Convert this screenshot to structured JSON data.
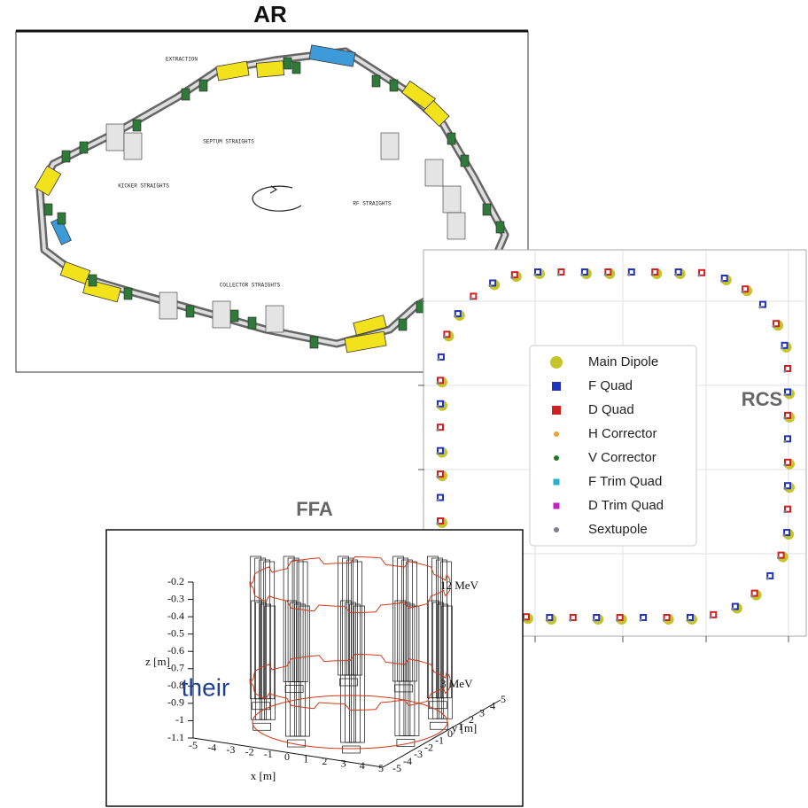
{
  "panels": {
    "ar": {
      "title": "AR",
      "labels": [
        "EXTRACTION",
        "SEPTUM STRAIGHTS",
        "KICKER STRAIGHTS",
        "RF STRAIGHTS",
        "COLLECTOR STRAIGHTS"
      ]
    },
    "rcs": {
      "title": "RCS",
      "legend": [
        {
          "label": "Main Dipole",
          "color": "#c4c42c",
          "marker": "large-circle"
        },
        {
          "label": "F Quad",
          "color": "#2233bb",
          "marker": "square"
        },
        {
          "label": "D Quad",
          "color": "#cc2222",
          "marker": "square"
        },
        {
          "label": "H Corrector",
          "color": "#f0a030",
          "marker": "dot"
        },
        {
          "label": "V Corrector",
          "color": "#227722",
          "marker": "dot"
        },
        {
          "label": "F Trim Quad",
          "color": "#22b4c4",
          "marker": "small-square"
        },
        {
          "label": "D Trim Quad",
          "color": "#c422c4",
          "marker": "small-square"
        },
        {
          "label": "Sextupole",
          "color": "#7f7f8f",
          "marker": "dot"
        }
      ]
    },
    "ffa": {
      "title": "FFA",
      "z_label": "z [m]",
      "z_ticks": [
        "-0.2",
        "-0.3",
        "-0.4",
        "-0.5",
        "-0.6",
        "-0.7",
        "-0.8",
        "-0.9",
        "-1",
        "-1.1"
      ],
      "x_label": "x [m]",
      "x_ticks": [
        "-5",
        "-4",
        "-3",
        "-2",
        "-1",
        "0",
        "1",
        "2",
        "3",
        "4",
        "5"
      ],
      "y_label": "y [m]",
      "y_ticks": [
        "-5",
        "-4",
        "-3",
        "-2",
        "-1",
        "0",
        "1",
        "2",
        "3",
        "4",
        "5"
      ],
      "annotations": [
        "12 MeV",
        "3 MeV"
      ]
    }
  },
  "text": "their"
}
